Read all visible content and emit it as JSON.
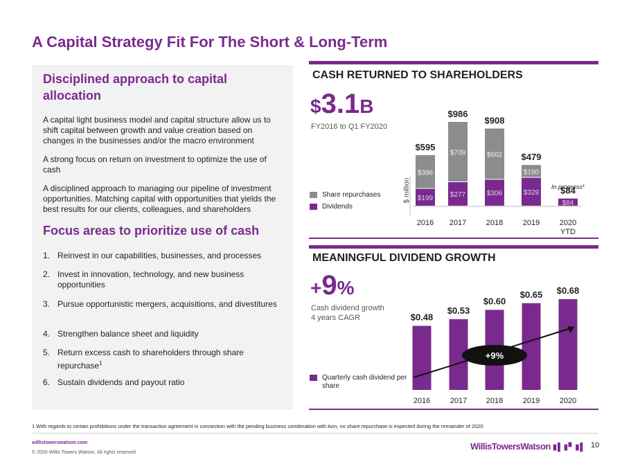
{
  "title": "A Capital Strategy Fit For The Short & Long-Term",
  "left": {
    "heading1": "Disciplined approach to capital allocation",
    "paragraphs": [
      "A capital light business model and capital structure allow us to shift capital between growth and value creation based on changes in the businesses and/or the macro environment",
      "A strong focus on return on investment to optimize the use of cash",
      "A disciplined approach to managing our pipeline of investment opportunities. Matching capital with opportunities that yields the best results for our clients, colleagues, and shareholders"
    ],
    "heading2": "Focus areas to prioritize use of cash",
    "list": [
      {
        "num": "1.",
        "text": "Reinvest in our capabilities, businesses, and processes"
      },
      {
        "num": "2.",
        "text": "Invest in innovation, technology, and new business opportunities"
      },
      {
        "num": "3.",
        "text": "Pursue opportunistic mergers, acquisitions, and divestitures"
      },
      {
        "num": "4.",
        "text": "Strengthen balance sheet and liquidity"
      },
      {
        "num": "5.",
        "text": "Return excess cash to shareholders through share repurchase",
        "sup": "1"
      },
      {
        "num": "6.",
        "text": "Sustain dividends and payout ratio"
      }
    ]
  },
  "cash_panel": {
    "title": "CASH RETURNED TO SHAREHOLDERS",
    "big_prefix": "$",
    "big_value": "3.1",
    "big_suffix": "B",
    "subtitle": "FY2016 to Q1 FY2020",
    "legend": [
      "Share repurchases",
      "Dividends"
    ],
    "in_progress": "In progress",
    "in_progress_sup": "1"
  },
  "dividend_panel": {
    "title": "MEANINGFUL DIVIDEND GROWTH",
    "big_prefix": "+",
    "big_value": "9",
    "big_suffix": "%",
    "subtitle_line1": "Cash dividend growth",
    "subtitle_line2": "4 years CAGR",
    "legend": "Quarterly cash dividend per share",
    "cagr_label": "+9%"
  },
  "chart_data": [
    {
      "type": "bar",
      "stacked": true,
      "title": "CASH RETURNED TO SHAREHOLDERS",
      "ylabel": "$ million",
      "categories": [
        "2016",
        "2017",
        "2018",
        "2019",
        "2020 YTD"
      ],
      "category_lines": [
        [
          "2016"
        ],
        [
          "2017"
        ],
        [
          "2018"
        ],
        [
          "2019"
        ],
        [
          "2020",
          "YTD"
        ]
      ],
      "series": [
        {
          "name": "Dividends",
          "values": [
            199,
            277,
            306,
            329,
            84
          ],
          "labels": [
            "$199",
            "$277",
            "$306",
            "$329",
            "$84"
          ],
          "color": "#7a2a8e"
        },
        {
          "name": "Share repurchases",
          "values": [
            396,
            709,
            602,
            150,
            0
          ],
          "labels": [
            "$396",
            "$709",
            "$602",
            "$150",
            ""
          ],
          "color": "#8c8c8c"
        }
      ],
      "totals": [
        595,
        986,
        908,
        479,
        84
      ],
      "total_labels": [
        "$595",
        "$986",
        "$908",
        "$479",
        "$84"
      ],
      "ylim": [
        0,
        986
      ],
      "grid": false
    },
    {
      "type": "bar",
      "title": "MEANINGFUL DIVIDEND GROWTH",
      "categories": [
        "2016",
        "2017",
        "2018",
        "2019",
        "2020"
      ],
      "values": [
        0.48,
        0.53,
        0.6,
        0.65,
        0.68
      ],
      "value_labels": [
        "$0.48",
        "$0.53",
        "$0.60",
        "$0.65",
        "$0.68"
      ],
      "series_name": "Quarterly cash dividend per share",
      "color": "#7a2a8e",
      "ylim": [
        0,
        0.68
      ],
      "annotation": "+9%",
      "grid": false
    }
  ],
  "footer": {
    "footnote": "1 With regards to certain prohibitions under the transaction agreement in connection with the pending business combination with Aon, no share repurchase is expected during the remainder of 2020",
    "website": "willistowerswatson.com",
    "copyright": "© 2020 Willis Towers Watson. All rights reserved.",
    "brand": "WillisTowersWatson",
    "page": "10"
  }
}
